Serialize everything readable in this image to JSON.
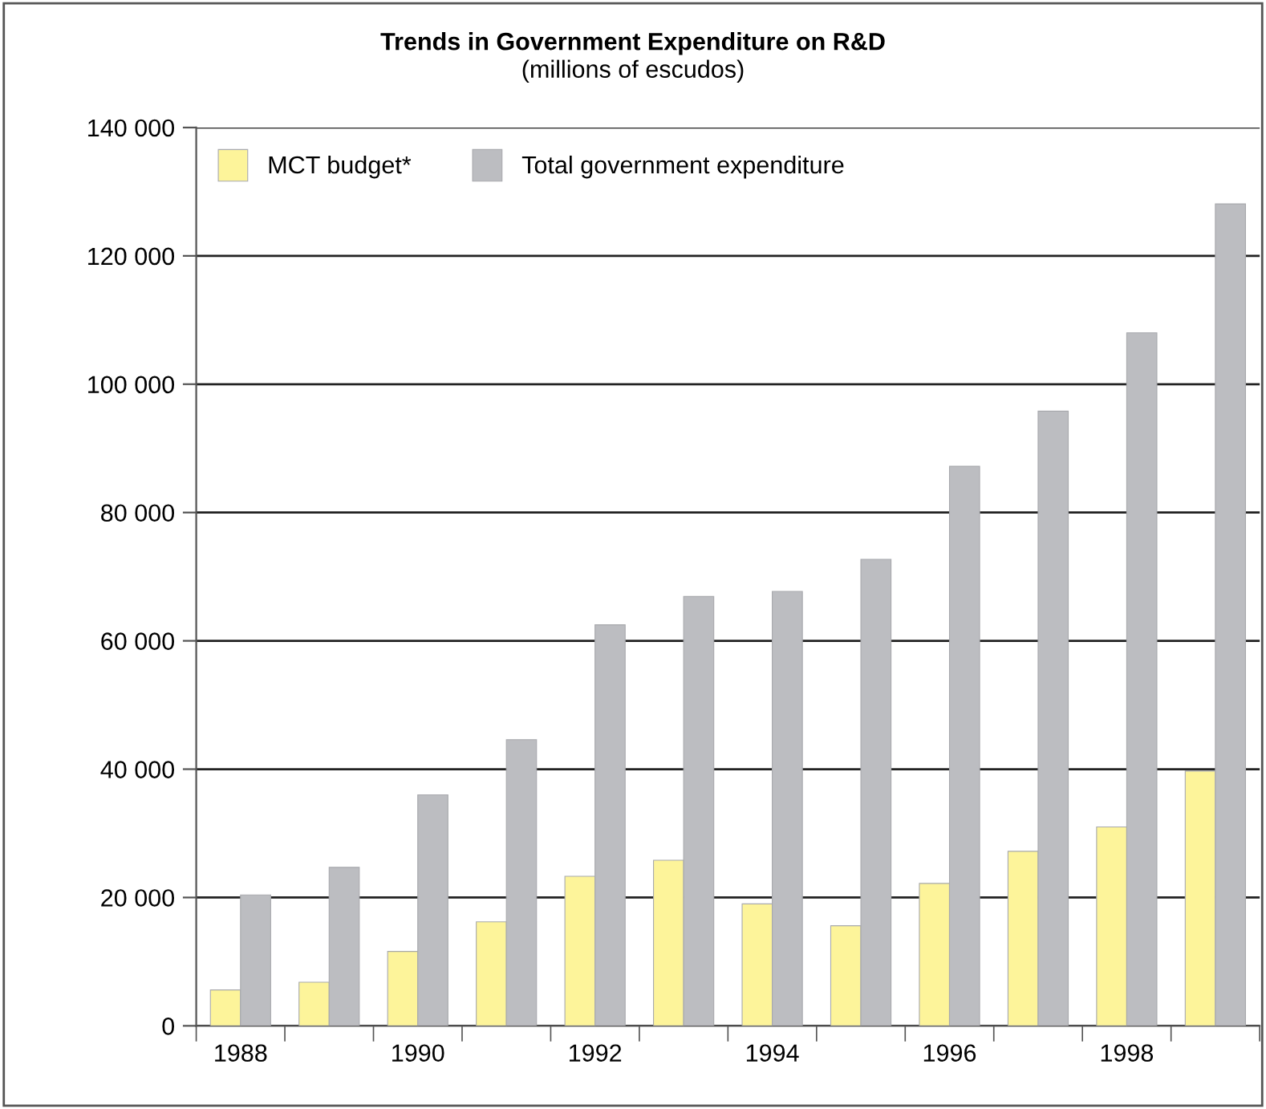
{
  "chart_data": {
    "type": "bar",
    "title": "Trends in Government Expenditure on R&D",
    "subtitle": "(millions of escudos)",
    "categories": [
      "1988",
      null,
      "1990",
      null,
      "1992",
      null,
      "1994",
      null,
      "1996",
      null,
      "1998",
      null
    ],
    "series": [
      {
        "name": "MCT budget*",
        "color": "#fdf49a",
        "values": [
          5600,
          6800,
          11600,
          16200,
          23300,
          25800,
          19000,
          15600,
          22200,
          27200,
          31000,
          39700
        ]
      },
      {
        "name": "Total government expenditure",
        "color": "#bcbdc1",
        "values": [
          20400,
          24700,
          36000,
          44600,
          62500,
          66900,
          67700,
          72700,
          87200,
          95800,
          108000,
          128100
        ]
      }
    ],
    "ylim": [
      0,
      140000
    ],
    "yticks": [
      {
        "value": 0,
        "label": "0"
      },
      {
        "value": 20000,
        "label": "20 000"
      },
      {
        "value": 40000,
        "label": "40 000"
      },
      {
        "value": 60000,
        "label": "60 000"
      },
      {
        "value": 80000,
        "label": "80 000"
      },
      {
        "value": 100000,
        "label": "100 000"
      },
      {
        "value": 120000,
        "label": "120 000"
      },
      {
        "value": 140000,
        "label": "140 000"
      }
    ],
    "grid": "y",
    "legend": "top left"
  }
}
